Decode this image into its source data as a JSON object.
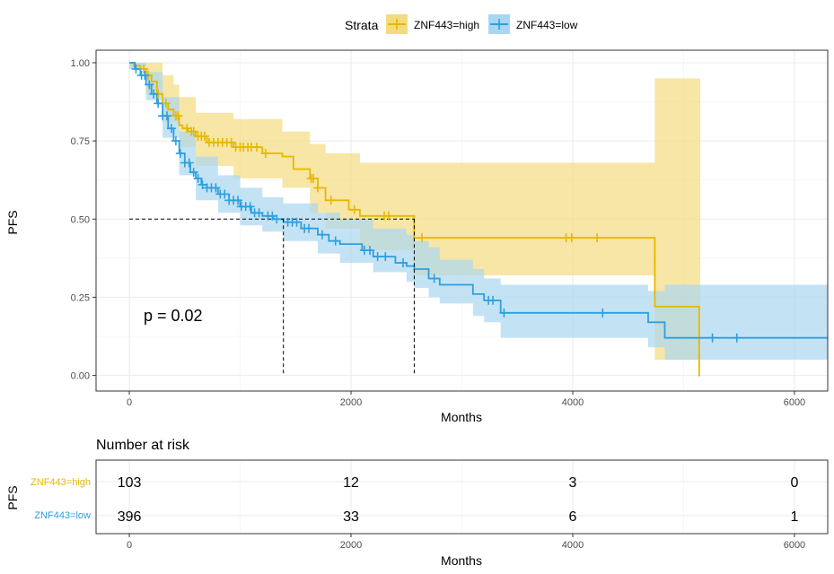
{
  "chart_data": [
    {
      "type": "line",
      "subtype": "kaplan-meier",
      "title": "",
      "xlabel": "Months",
      "ylabel": "PFS",
      "xlim": [
        -300,
        6300
      ],
      "ylim": [
        -0.05,
        1.04
      ],
      "x_ticks": [
        0,
        2000,
        4000,
        6000
      ],
      "x_tick_labels": [
        "0",
        "2000",
        "4000",
        "6000"
      ],
      "y_ticks": [
        0,
        0.25,
        0.5,
        0.75,
        1.0
      ],
      "y_tick_labels": [
        "0.00",
        "0.25",
        "0.50",
        "0.75",
        "1.00"
      ],
      "grid": true,
      "legend": {
        "title": "Strata",
        "position": "top",
        "entries": [
          "ZNF443=high",
          "ZNF443=low"
        ]
      },
      "annotation": "p = 0.02",
      "median_survival": {
        "y": 0.5,
        "x_values": [
          1390,
          2570
        ]
      },
      "series": [
        {
          "name": "ZNF443=high",
          "color": "#E7B800",
          "fill": "#F3DC7F",
          "steps": [
            [
              0,
              1.0
            ],
            [
              40,
              0.99
            ],
            [
              100,
              0.98
            ],
            [
              150,
              0.96
            ],
            [
              200,
              0.94
            ],
            [
              250,
              0.9
            ],
            [
              300,
              0.87
            ],
            [
              350,
              0.85
            ],
            [
              400,
              0.83
            ],
            [
              450,
              0.8
            ],
            [
              480,
              0.79
            ],
            [
              530,
              0.78
            ],
            [
              600,
              0.765
            ],
            [
              700,
              0.745
            ],
            [
              940,
              0.73
            ],
            [
              1200,
              0.71
            ],
            [
              1380,
              0.7
            ],
            [
              1480,
              0.66
            ],
            [
              1630,
              0.63
            ],
            [
              1700,
              0.6
            ],
            [
              1770,
              0.56
            ],
            [
              1980,
              0.53
            ],
            [
              2080,
              0.51
            ],
            [
              2570,
              0.44
            ],
            [
              4740,
              0.22
            ],
            [
              5140,
              0.0
            ],
            [
              5150,
              0.0
            ]
          ],
          "lower": [
            [
              0,
              0.98
            ],
            [
              150,
              0.9
            ],
            [
              300,
              0.81
            ],
            [
              450,
              0.73
            ],
            [
              600,
              0.67
            ],
            [
              940,
              0.63
            ],
            [
              1380,
              0.6
            ],
            [
              1630,
              0.52
            ],
            [
              1770,
              0.47
            ],
            [
              2080,
              0.4
            ],
            [
              2570,
              0.32
            ],
            [
              3000,
              0.32
            ],
            [
              4740,
              0.05
            ],
            [
              4850,
              0.05
            ],
            [
              5150,
              0.05
            ]
          ],
          "upper": [
            [
              0,
              1.0
            ],
            [
              200,
              1.0
            ],
            [
              300,
              0.96
            ],
            [
              400,
              0.93
            ],
            [
              450,
              0.89
            ],
            [
              600,
              0.84
            ],
            [
              940,
              0.82
            ],
            [
              1380,
              0.78
            ],
            [
              1630,
              0.74
            ],
            [
              1770,
              0.71
            ],
            [
              2080,
              0.68
            ],
            [
              2570,
              0.68
            ],
            [
              4740,
              0.95
            ],
            [
              5150,
              0.95
            ]
          ],
          "censor_x": [
            130,
            170,
            260,
            330,
            420,
            440,
            520,
            560,
            580,
            620,
            650,
            680,
            720,
            760,
            800,
            840,
            880,
            920,
            960,
            1000,
            1030,
            1070,
            1100,
            1150,
            1230,
            1640,
            1660,
            1700,
            1820,
            2030,
            2300,
            2340,
            2640,
            3940,
            3990,
            4220
          ]
        },
        {
          "name": "ZNF443=low",
          "color": "#2E9FDF",
          "fill": "#A9D7F1",
          "steps": [
            [
              0,
              1.0
            ],
            [
              50,
              0.98
            ],
            [
              100,
              0.96
            ],
            [
              150,
              0.93
            ],
            [
              200,
              0.9
            ],
            [
              250,
              0.87
            ],
            [
              300,
              0.83
            ],
            [
              350,
              0.79
            ],
            [
              400,
              0.75
            ],
            [
              450,
              0.71
            ],
            [
              500,
              0.68
            ],
            [
              550,
              0.65
            ],
            [
              600,
              0.63
            ],
            [
              650,
              0.61
            ],
            [
              700,
              0.6
            ],
            [
              800,
              0.58
            ],
            [
              900,
              0.56
            ],
            [
              1000,
              0.54
            ],
            [
              1100,
              0.52
            ],
            [
              1200,
              0.51
            ],
            [
              1300,
              0.5
            ],
            [
              1390,
              0.49
            ],
            [
              1550,
              0.47
            ],
            [
              1700,
              0.45
            ],
            [
              1800,
              0.43
            ],
            [
              1900,
              0.42
            ],
            [
              2100,
              0.4
            ],
            [
              2200,
              0.38
            ],
            [
              2400,
              0.36
            ],
            [
              2500,
              0.35
            ],
            [
              2570,
              0.34
            ],
            [
              2700,
              0.31
            ],
            [
              2800,
              0.29
            ],
            [
              3100,
              0.26
            ],
            [
              3200,
              0.24
            ],
            [
              3350,
              0.2
            ],
            [
              4680,
              0.17
            ],
            [
              4830,
              0.12
            ],
            [
              6300,
              0.12
            ]
          ],
          "lower": [
            [
              0,
              0.98
            ],
            [
              150,
              0.88
            ],
            [
              300,
              0.76
            ],
            [
              450,
              0.64
            ],
            [
              600,
              0.56
            ],
            [
              800,
              0.52
            ],
            [
              1000,
              0.48
            ],
            [
              1200,
              0.46
            ],
            [
              1390,
              0.43
            ],
            [
              1700,
              0.39
            ],
            [
              1900,
              0.36
            ],
            [
              2200,
              0.33
            ],
            [
              2500,
              0.3
            ],
            [
              2570,
              0.28
            ],
            [
              2700,
              0.25
            ],
            [
              2800,
              0.23
            ],
            [
              3100,
              0.19
            ],
            [
              3200,
              0.17
            ],
            [
              3350,
              0.12
            ],
            [
              4680,
              0.09
            ],
            [
              4830,
              0.05
            ],
            [
              6300,
              0.05
            ]
          ],
          "upper": [
            [
              0,
              1.0
            ],
            [
              100,
              1.0
            ],
            [
              150,
              0.97
            ],
            [
              300,
              0.89
            ],
            [
              450,
              0.78
            ],
            [
              600,
              0.7
            ],
            [
              800,
              0.64
            ],
            [
              1000,
              0.6
            ],
            [
              1200,
              0.57
            ],
            [
              1390,
              0.55
            ],
            [
              1700,
              0.52
            ],
            [
              1900,
              0.5
            ],
            [
              2200,
              0.47
            ],
            [
              2500,
              0.45
            ],
            [
              2570,
              0.43
            ],
            [
              2700,
              0.41
            ],
            [
              2800,
              0.37
            ],
            [
              3100,
              0.34
            ],
            [
              3200,
              0.31
            ],
            [
              3350,
              0.29
            ],
            [
              4680,
              0.27
            ],
            [
              4830,
              0.29
            ],
            [
              6300,
              0.29
            ]
          ],
          "censor_x": [
            60,
            110,
            140,
            180,
            220,
            260,
            300,
            340,
            380,
            420,
            460,
            500,
            540,
            580,
            620,
            660,
            700,
            740,
            780,
            820,
            860,
            900,
            940,
            980,
            1010,
            1050,
            1090,
            1130,
            1170,
            1250,
            1290,
            1330,
            1430,
            1470,
            1510,
            1580,
            1620,
            1740,
            1860,
            2120,
            2170,
            2240,
            2310,
            2470,
            2750,
            3240,
            3280,
            3380,
            4270,
            5260,
            5480
          ]
        }
      ]
    },
    {
      "type": "table",
      "title": "Number at risk",
      "xlabel": "Months",
      "ylabel": "PFS",
      "x_ticks": [
        0,
        2000,
        4000,
        6000
      ],
      "x_tick_labels": [
        "0",
        "2000",
        "4000",
        "6000"
      ],
      "rows": [
        {
          "label": "ZNF443=high",
          "color": "#E7B800",
          "values": [
            "103",
            "12",
            "3",
            "0"
          ]
        },
        {
          "label": "ZNF443=low",
          "color": "#2E9FDF",
          "values": [
            "396",
            "33",
            "6",
            "1"
          ]
        }
      ]
    }
  ]
}
